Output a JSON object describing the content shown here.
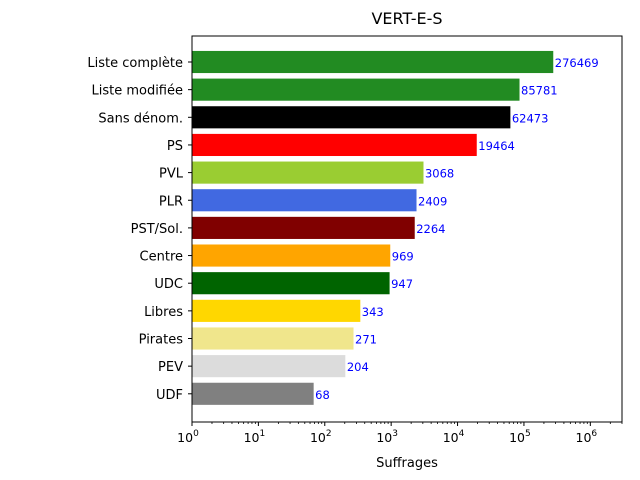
{
  "chart_data": {
    "type": "bar",
    "orientation": "horizontal",
    "title": "VERT-E-S",
    "xlabel": "Suffrages",
    "ylabel": "",
    "xscale": "log",
    "xlim": [
      1,
      3000000
    ],
    "xticks": [
      1,
      10,
      100,
      1000,
      10000,
      100000,
      1000000
    ],
    "grid": false,
    "categories": [
      "Liste complète",
      "Liste modifiée",
      "Sans dénom.",
      "PS",
      "PVL",
      "PLR",
      "PST/Sol.",
      "Centre",
      "UDC",
      "Libres",
      "Pirates",
      "PEV",
      "UDF"
    ],
    "values": [
      276469,
      85781,
      62473,
      19464,
      3068,
      2409,
      2264,
      969,
      947,
      343,
      271,
      204,
      68
    ],
    "colors": [
      "#228B22",
      "#228B22",
      "#000000",
      "#FF0000",
      "#9ACD32",
      "#4169E1",
      "#800000",
      "#FFA500",
      "#006400",
      "#FFD700",
      "#F0E68C",
      "#DCDCDC",
      "#808080"
    ],
    "data_label_color": "#0000FF"
  }
}
